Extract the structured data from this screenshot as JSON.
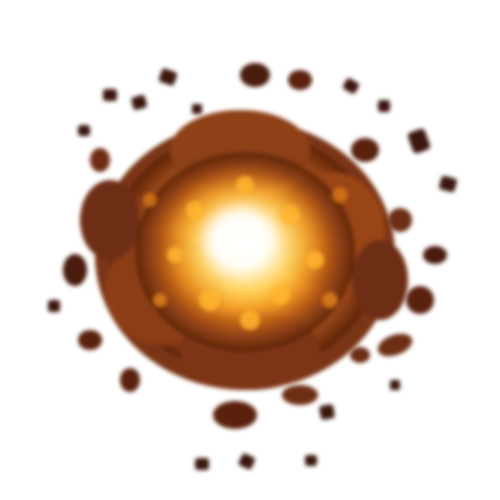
{
  "sprite": {
    "icon": "explosion-fireball-icon",
    "palette": {
      "background": "#ffffff",
      "core": "#fffbe6",
      "inner": "#ffd24a",
      "mid": "#f0901e",
      "outer": "#b8571a",
      "edge": "#6e2e12",
      "smoke": "#3a170a"
    }
  }
}
